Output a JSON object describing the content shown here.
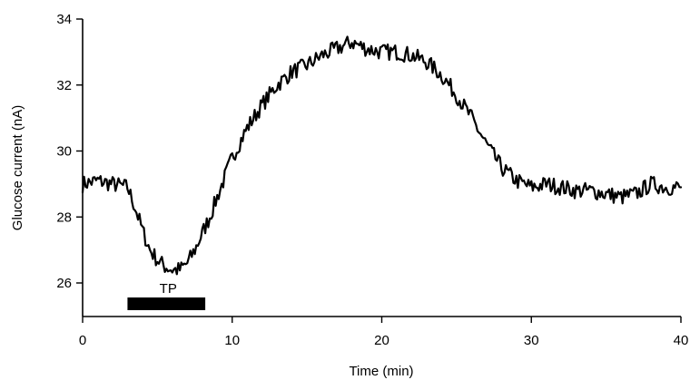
{
  "chart_data": {
    "type": "line",
    "title": "",
    "xlabel": "Time (min)",
    "ylabel": "Glucose current (nA)",
    "xlim": [
      0,
      40
    ],
    "ylim": [
      25,
      34
    ],
    "x_ticks": [
      0,
      10,
      20,
      30,
      40
    ],
    "x_tick_labels": [
      "0",
      "10",
      "20",
      "30",
      "40"
    ],
    "y_ticks": [
      26,
      28,
      30,
      32,
      34
    ],
    "y_tick_labels": [
      "26",
      "28",
      "30",
      "32",
      "34"
    ],
    "grid": false,
    "series": [
      {
        "color": "#000000",
        "x": [
          0,
          1,
          2,
          3,
          3.5,
          4,
          4.5,
          5,
          5.5,
          6,
          6.5,
          7,
          7.5,
          8,
          8.5,
          9,
          10,
          11,
          12,
          13,
          14,
          15,
          16,
          17,
          18,
          19,
          20,
          21,
          22,
          23,
          24,
          25,
          26,
          27,
          28,
          29,
          30,
          31,
          32,
          33,
          34,
          35,
          36,
          37,
          38,
          39,
          40
        ],
        "y": [
          29.0,
          29.1,
          29.0,
          28.9,
          28.3,
          27.6,
          27.0,
          26.7,
          26.5,
          26.4,
          26.4,
          26.6,
          27.0,
          27.5,
          28.0,
          28.6,
          29.8,
          30.7,
          31.4,
          32.0,
          32.4,
          32.6,
          32.9,
          33.1,
          33.3,
          33.1,
          33.0,
          33.0,
          32.9,
          32.7,
          32.3,
          31.7,
          31.0,
          30.2,
          29.5,
          29.1,
          28.9,
          29.0,
          28.9,
          28.8,
          28.8,
          28.7,
          28.6,
          28.7,
          29.0,
          28.9,
          28.9
        ]
      }
    ],
    "annotations": [
      {
        "type": "stimulus-bar",
        "label": "TP",
        "x_start": 3,
        "x_end": 8.2
      }
    ]
  }
}
